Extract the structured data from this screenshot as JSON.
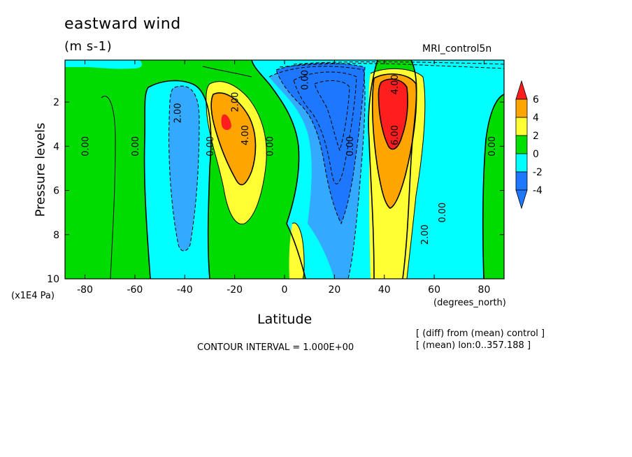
{
  "chart_data": {
    "type": "contour",
    "title": "eastward wind",
    "units": "(m s-1)",
    "dataset": "MRI_control5n",
    "xlabel": "Latitude",
    "x_unit_label": "(degrees_north)",
    "ylabel": "Pressure levels",
    "y_unit_label": "(x1E4 Pa)",
    "contour_interval": "CONTOUR INTERVAL = 1.000E+00",
    "notes": [
      "[ (diff) from (mean) control ]",
      "[ (mean) lon:0..357.188 ]"
    ],
    "xlim": [
      -88,
      88
    ],
    "ylim": [
      10,
      0.1
    ],
    "x_ticks": [
      -80,
      -60,
      -40,
      -20,
      0,
      20,
      40,
      60,
      80
    ],
    "x_tick_labels": [
      "-80",
      "-60",
      "-40",
      "-20",
      "0",
      "20",
      "40",
      "60",
      "80"
    ],
    "y_ticks": [
      2,
      4,
      6,
      8,
      10
    ],
    "y_tick_labels": [
      "2",
      "4",
      "6",
      "8",
      "10"
    ],
    "colorbar": {
      "levels": [
        -4,
        -2,
        0,
        2,
        4,
        6
      ],
      "labels": [
        "-4",
        "-2",
        "0",
        "2",
        "4",
        "6"
      ],
      "colors": [
        "#1e78ff",
        "#00ffff",
        "#00e000",
        "#ffff33",
        "#ffa500",
        "#ff1e1e"
      ],
      "lower_color": "#1e78ff",
      "upper_color": "#ff1e1e"
    },
    "fill_colors": {
      "below_-4": "#1e78ff",
      "-4_to_-2": "#33aaff",
      "-2_to_0": "#00ffff",
      "0_to_2": "#00dc00",
      "2_to_4": "#ffff33",
      "4_to_6": "#ffa500",
      "above_6": "#ff1e1e"
    },
    "regions": [
      {
        "name": "sh-subtropical-jet",
        "lat": -22,
        "p": 3,
        "peak": 6,
        "sign": "positive"
      },
      {
        "name": "sh-midlat-minimum",
        "lat": -43,
        "p": 3.5,
        "peak": -3,
        "sign": "negative"
      },
      {
        "name": "equatorial-stratosphere-minimum",
        "lat": 22,
        "p": 3,
        "peak": -5,
        "sign": "negative"
      },
      {
        "name": "nh-subtropical-jet",
        "lat": 44,
        "p": 2.5,
        "peak": 7,
        "sign": "positive"
      },
      {
        "name": "equatorial-surface-maximum",
        "lat": 5,
        "p": 9,
        "peak": 4,
        "sign": "positive"
      }
    ],
    "contour_labels": [
      {
        "text": "0.00",
        "lat": -80,
        "p": 4
      },
      {
        "text": "0.00",
        "lat": -60,
        "p": 4
      },
      {
        "text": "2.00",
        "lat": -43,
        "p": 2.5
      },
      {
        "text": "0.00",
        "lat": -30,
        "p": 4
      },
      {
        "text": "2.00",
        "lat": -20,
        "p": 2
      },
      {
        "text": "4.00",
        "lat": -16,
        "p": 3.5
      },
      {
        "text": "0.00",
        "lat": -6,
        "p": 4
      },
      {
        "text": "0.00",
        "lat": 8,
        "p": 1
      },
      {
        "text": "0.00",
        "lat": 26,
        "p": 4
      },
      {
        "text": "4.00",
        "lat": 44,
        "p": 1.2
      },
      {
        "text": "6.00",
        "lat": 44,
        "p": 3.5
      },
      {
        "text": "0.00",
        "lat": 63,
        "p": 7
      },
      {
        "text": "2.00",
        "lat": 56,
        "p": 8
      },
      {
        "text": "0.00",
        "lat": 83,
        "p": 4
      }
    ]
  }
}
